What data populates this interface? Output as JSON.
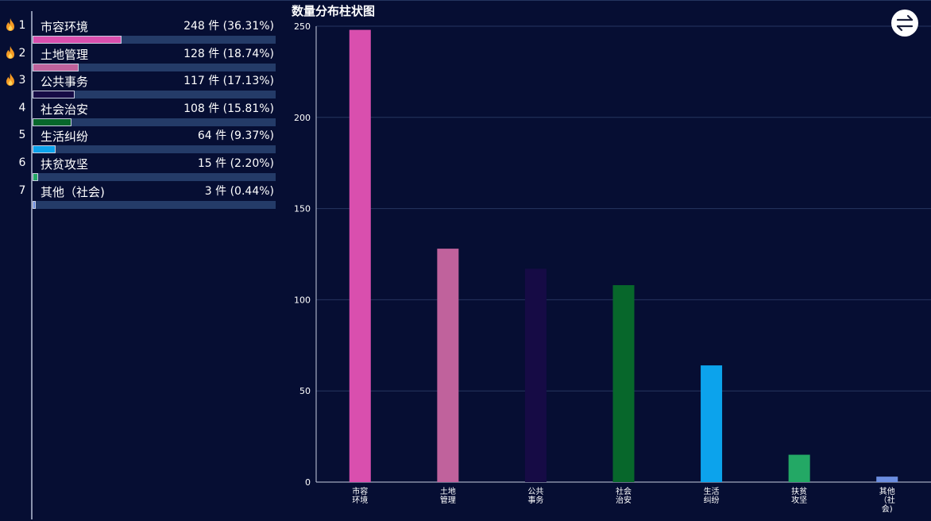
{
  "ranking": {
    "items": [
      {
        "rank": "1",
        "name": "市容环境",
        "value_text": "248 件  (36.31%)",
        "percent": 36.31,
        "color": "#d94fae",
        "hot": true
      },
      {
        "rank": "2",
        "name": "土地管理",
        "value_text": "128 件  (18.74%)",
        "percent": 18.74,
        "color": "#c0629c",
        "hot": true
      },
      {
        "rank": "3",
        "name": "公共事务",
        "value_text": "117 件  (17.13%)",
        "percent": 17.13,
        "color": "#160b45",
        "hot": true
      },
      {
        "rank": "4",
        "name": "社会治安",
        "value_text": "108 件  (15.81%)",
        "percent": 15.81,
        "color": "#07672b",
        "hot": false
      },
      {
        "rank": "5",
        "name": "生活纠纷",
        "value_text": "64 件  (9.37%)",
        "percent": 9.37,
        "color": "#0ca3ec",
        "hot": false
      },
      {
        "rank": "6",
        "name": "扶贫攻坚",
        "value_text": "15 件  (2.20%)",
        "percent": 2.2,
        "color": "#23a865",
        "hot": false
      },
      {
        "rank": "7",
        "name": "其他（社会)",
        "value_text": "3 件  (0.44%)",
        "percent": 0.44,
        "color": "#6b8de0",
        "hot": false
      }
    ],
    "icons": {
      "hot": "flame-icon"
    }
  },
  "toolbar": {
    "switch_icon": "swap-arrows-icon"
  },
  "chart_data": {
    "type": "bar",
    "title": "数量分布柱状图",
    "categories": [
      "市容环境",
      "土地管理",
      "公共事务",
      "社会治安",
      "生活纠纷",
      "扶贫攻坚",
      "其他（社会)"
    ],
    "category_lines": [
      [
        "市容",
        "环境"
      ],
      [
        "土地",
        "管理"
      ],
      [
        "公共",
        "事务"
      ],
      [
        "社会",
        "治安"
      ],
      [
        "生活",
        "纠纷"
      ],
      [
        "扶贫",
        "攻坚"
      ],
      [
        "其他",
        "（社",
        "会)"
      ]
    ],
    "values": [
      248,
      128,
      117,
      108,
      64,
      15,
      3
    ],
    "colors": [
      "#d94fae",
      "#c0629c",
      "#160b45",
      "#07672b",
      "#0ca3ec",
      "#23a865",
      "#6b8de0"
    ],
    "ylim": [
      0,
      250
    ],
    "yticks": [
      0,
      50,
      100,
      150,
      200,
      250
    ],
    "grid": true,
    "xlabel": "",
    "ylabel": ""
  }
}
